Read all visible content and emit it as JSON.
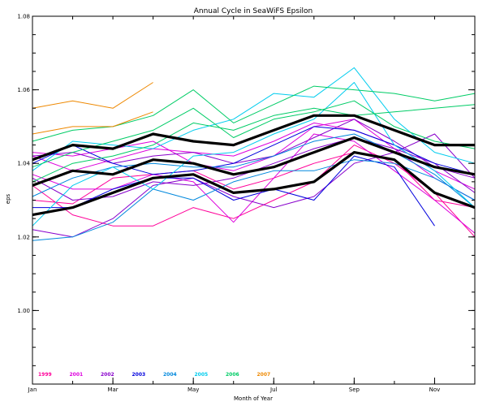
{
  "chart_data": {
    "type": "line",
    "title": "Annual Cycle in SeaWiFS Epsilon",
    "xlabel": "Month of Year",
    "ylabel": "eps",
    "xlim": [
      1,
      12
    ],
    "ylim": [
      0.98,
      1.08
    ],
    "x_ticks": [
      {
        "value": 1,
        "label": "Jan"
      },
      {
        "value": 3,
        "label": "Mar"
      },
      {
        "value": 5,
        "label": "May"
      },
      {
        "value": 7,
        "label": "Jul"
      },
      {
        "value": 9,
        "label": "Sep"
      },
      {
        "value": 11,
        "label": "Nov"
      }
    ],
    "y_ticks": [
      {
        "value": 1.0,
        "label": "1.00"
      },
      {
        "value": 1.02,
        "label": "1.02"
      },
      {
        "value": 1.04,
        "label": "1.04"
      },
      {
        "value": 1.06,
        "label": "1.06"
      },
      {
        "value": 1.08,
        "label": "1.08"
      }
    ],
    "legend": {
      "placement": "bottom-left",
      "entries": [
        {
          "label": "1999",
          "color": "#ff0099"
        },
        {
          "label": "2001",
          "color": "#dd00dd"
        },
        {
          "label": "2002",
          "color": "#8800cc"
        },
        {
          "label": "2003",
          "color": "#0000dd"
        },
        {
          "label": "2004",
          "color": "#0088dd"
        },
        {
          "label": "2005",
          "color": "#00ccee"
        },
        {
          "label": "2006",
          "color": "#00cc66"
        },
        {
          "label": "2007",
          "color": "#ee8800"
        }
      ]
    },
    "x": [
      1,
      2,
      3,
      4,
      5,
      6,
      7,
      8,
      9,
      10,
      11,
      12
    ],
    "series": [
      {
        "color": "#ff0099",
        "values": [
          1.034,
          1.026,
          1.023,
          1.023,
          1.028,
          1.025,
          1.03,
          1.035,
          1.045,
          1.04,
          1.032,
          1.02
        ]
      },
      {
        "color": "#ff0099",
        "values": [
          1.03,
          1.029,
          1.036,
          1.037,
          1.038,
          1.033,
          1.036,
          1.04,
          1.043,
          1.041,
          1.03,
          1.028
        ]
      },
      {
        "color": "#dd00dd",
        "values": [
          1.043,
          1.042,
          1.044,
          1.046,
          1.04,
          1.038,
          1.042,
          1.05,
          1.052,
          1.044,
          1.036,
          1.03
        ]
      },
      {
        "color": "#dd00dd",
        "values": [
          1.037,
          1.033,
          1.033,
          1.037,
          1.035,
          1.024,
          1.036,
          1.048,
          1.046,
          1.038,
          1.03,
          1.021
        ]
      },
      {
        "color": "#dd00dd",
        "values": [
          1.042,
          1.038,
          1.041,
          1.044,
          1.043,
          1.042,
          1.046,
          1.051,
          1.049,
          1.045,
          1.038,
          1.033
        ]
      },
      {
        "color": "#8800cc",
        "values": [
          1.022,
          1.02,
          1.025,
          1.034,
          1.036,
          1.031,
          1.028,
          1.031,
          1.04,
          1.043,
          1.048,
          1.036
        ]
      },
      {
        "color": "#8800cc",
        "values": [
          1.036,
          1.03,
          1.031,
          1.035,
          1.034,
          1.036,
          1.04,
          1.044,
          1.047,
          1.044,
          1.04,
          1.032
        ]
      },
      {
        "color": "#8800cc",
        "values": [
          1.042,
          1.043,
          1.04,
          1.042,
          1.043,
          1.04,
          1.042,
          1.047,
          1.052,
          1.046,
          1.039,
          1.036
        ]
      },
      {
        "color": "#0000dd",
        "values": [
          1.028,
          1.028,
          1.033,
          1.036,
          1.036,
          1.03,
          1.033,
          1.03,
          1.042,
          1.039,
          1.023,
          null
        ]
      },
      {
        "color": "#0000dd",
        "values": [
          1.04,
          1.045,
          1.04,
          1.037,
          1.038,
          1.04,
          1.045,
          1.05,
          1.049,
          1.045,
          1.04,
          1.037
        ]
      },
      {
        "color": "#0088dd",
        "values": [
          1.019,
          1.02,
          1.024,
          1.033,
          1.03,
          1.035,
          1.038,
          1.038,
          1.041,
          1.04,
          1.036,
          1.03
        ]
      },
      {
        "color": "#0088dd",
        "values": [
          1.031,
          1.036,
          1.039,
          1.04,
          1.039,
          1.039,
          1.042,
          1.046,
          1.048,
          1.043,
          1.037,
          1.028
        ]
      },
      {
        "color": "#00ccee",
        "values": [
          1.023,
          1.034,
          1.039,
          1.033,
          1.042,
          1.043,
          1.048,
          1.052,
          1.062,
          1.045,
          1.038,
          1.028
        ]
      },
      {
        "color": "#00ccee",
        "values": [
          1.038,
          1.046,
          1.045,
          1.044,
          1.049,
          1.052,
          1.059,
          1.058,
          1.066,
          1.052,
          1.043,
          1.04
        ]
      },
      {
        "color": "#00cc66",
        "values": [
          1.046,
          1.049,
          1.05,
          1.053,
          1.06,
          1.051,
          1.056,
          1.061,
          1.06,
          1.059,
          1.057,
          1.059
        ]
      },
      {
        "color": "#00cc66",
        "values": [
          1.039,
          1.043,
          1.046,
          1.049,
          1.055,
          1.047,
          1.052,
          1.054,
          1.057,
          1.05,
          1.046,
          1.044
        ]
      },
      {
        "color": "#00cc66",
        "values": [
          1.035,
          1.04,
          1.042,
          1.045,
          1.051,
          1.049,
          1.053,
          1.055,
          1.053,
          1.054,
          1.055,
          1.056
        ]
      },
      {
        "color": "#ee8800",
        "values": [
          1.055,
          1.057,
          1.055,
          1.062,
          null,
          null,
          null,
          null,
          null,
          null,
          null,
          null
        ]
      },
      {
        "color": "#ee8800",
        "values": [
          1.048,
          1.05,
          1.05,
          1.054,
          null,
          null,
          null,
          null,
          null,
          null,
          null,
          null
        ]
      },
      {
        "color": "#000000",
        "bold": true,
        "values": [
          1.041,
          1.045,
          1.044,
          1.048,
          1.046,
          1.045,
          1.049,
          1.053,
          1.053,
          1.049,
          1.045,
          1.045
        ]
      },
      {
        "color": "#000000",
        "bold": true,
        "values": [
          1.034,
          1.038,
          1.037,
          1.041,
          1.04,
          1.037,
          1.039,
          1.043,
          1.047,
          1.043,
          1.039,
          1.037
        ]
      },
      {
        "color": "#000000",
        "bold": true,
        "values": [
          1.026,
          1.028,
          1.032,
          1.036,
          1.037,
          1.032,
          1.033,
          1.035,
          1.043,
          1.041,
          1.032,
          1.028
        ]
      }
    ]
  }
}
